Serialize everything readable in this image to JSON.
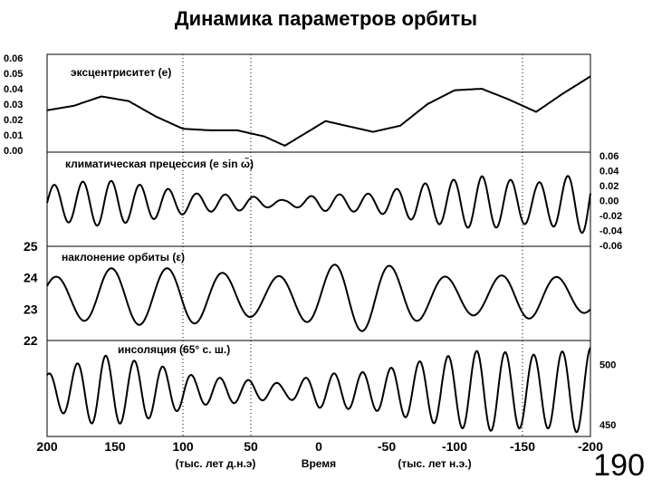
{
  "title": "Динамика параметров орбиты",
  "page_number": "190",
  "colors": {
    "line": "#000000",
    "background": "#ffffff",
    "frame": "#000000"
  },
  "chart_data": [
    {
      "type": "line",
      "label": "эксцентриситет (e)",
      "yticks": [
        "0.06",
        "0.05",
        "0.04",
        "0.03",
        "0.02",
        "0.01",
        "0.00"
      ],
      "ylim": [
        0.0,
        0.06
      ],
      "x": [
        200,
        180,
        160,
        140,
        120,
        100,
        80,
        60,
        40,
        25,
        10,
        -5,
        -20,
        -40,
        -60,
        -80,
        -100,
        -120,
        -140,
        -160,
        -180,
        -200
      ],
      "values": [
        0.026,
        0.029,
        0.035,
        0.032,
        0.022,
        0.014,
        0.013,
        0.013,
        0.009,
        0.003,
        0.011,
        0.019,
        0.016,
        0.012,
        0.016,
        0.03,
        0.039,
        0.04,
        0.033,
        0.025,
        0.037,
        0.048
      ]
    },
    {
      "type": "line",
      "label": "климатическая прецессия (e sin ω̃)",
      "yticks": [
        "0.06",
        "0.04",
        "0.02",
        "0.00",
        "-0.02",
        "-0.04",
        "-0.06"
      ],
      "ylim": [
        -0.06,
        0.06
      ],
      "period_kyr": 21,
      "amplitude_x": [
        200,
        160,
        120,
        90,
        60,
        25,
        0,
        -40,
        -80,
        -120,
        -160,
        -200
      ],
      "amplitude_values": [
        0.026,
        0.035,
        0.024,
        0.014,
        0.012,
        0.004,
        0.012,
        0.014,
        0.03,
        0.04,
        0.03,
        0.048
      ]
    },
    {
      "type": "line",
      "label": "наклонение орбиты (ε)",
      "yticks": [
        "25",
        "24",
        "23",
        "22"
      ],
      "ylim": [
        22,
        25
      ],
      "period_kyr": 41,
      "mean": 23.4,
      "x": [
        200,
        180,
        160,
        140,
        120,
        100,
        80,
        60,
        40,
        20,
        0,
        -20,
        -40,
        -60,
        -80,
        -100,
        -120,
        -140,
        -160,
        -180,
        -200
      ],
      "amplitude_values": [
        0.6,
        0.7,
        0.9,
        0.9,
        0.9,
        0.9,
        0.8,
        0.7,
        0.6,
        0.7,
        0.9,
        1.1,
        1.1,
        0.9,
        0.7,
        0.6,
        0.6,
        0.7,
        0.7,
        0.6,
        0.5
      ]
    },
    {
      "type": "line",
      "label": "инсоляция (65° с. ш.)",
      "yticks": [
        "500",
        "450"
      ],
      "ylim": [
        440,
        520
      ],
      "mean": 478,
      "period_kyr": 21,
      "amplitude_x": [
        200,
        160,
        120,
        90,
        60,
        25,
        0,
        -40,
        -80,
        -120,
        -160,
        -200
      ],
      "amplitude_values": [
        14,
        30,
        22,
        12,
        10,
        6,
        14,
        16,
        26,
        34,
        30,
        36
      ]
    }
  ],
  "x_axis": {
    "ticks": [
      "200",
      "150",
      "100",
      "50",
      "0",
      "-50",
      "-100",
      "-150",
      "-200"
    ],
    "tick_values": [
      200,
      150,
      100,
      50,
      0,
      -50,
      -100,
      -150,
      -200
    ],
    "label_left": "(тыс. лет д.н.э)",
    "label_center": "Время",
    "label_right": "(тыс. лет н.э.)"
  },
  "gridlines_x": [
    100,
    50,
    -150
  ]
}
